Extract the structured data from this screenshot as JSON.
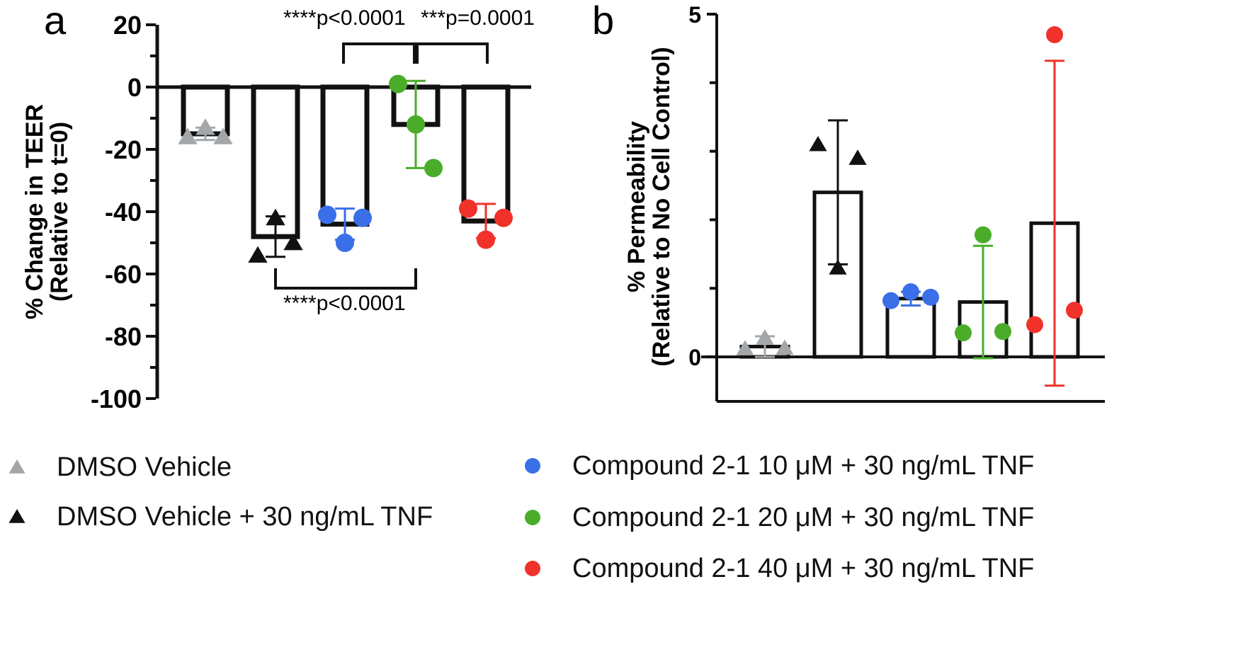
{
  "colors": {
    "gray": "#a3a7aa",
    "black": "#111111",
    "blue": "#3a6fe8",
    "green": "#4aad2a",
    "red": "#f0322b"
  },
  "legend": {
    "items": [
      {
        "label": "DMSO Vehicle",
        "marker": "triangle",
        "color": "#a3a7aa"
      },
      {
        "label": "DMSO Vehicle + 30 ng/mL TNF",
        "marker": "triangle",
        "color": "#111111"
      },
      {
        "label": "Compound 2-1 10 μM + 30 ng/mL TNF",
        "marker": "circle",
        "color": "#3a6fe8"
      },
      {
        "label": "Compound 2-1 20 μM + 30 ng/mL TNF",
        "marker": "circle",
        "color": "#4aad2a"
      },
      {
        "label": "Compound 2-1 40 μM + 30 ng/mL TNF",
        "marker": "circle",
        "color": "#f0322b"
      }
    ]
  },
  "chart_data": [
    {
      "panel": "a",
      "type": "bar",
      "ylabel": "% Change in TEER",
      "ylabel2": "(Relative to t=0)",
      "ylim": [
        -100,
        20
      ],
      "yticks": [
        20,
        0,
        -20,
        -40,
        -60,
        -80,
        -100
      ],
      "grid": false,
      "groups": [
        {
          "name": "DMSO Vehicle",
          "mean": -15,
          "sd": 2,
          "points": [
            -16,
            -13,
            -16
          ],
          "marker": "triangle",
          "color": "#a3a7aa"
        },
        {
          "name": "DMSO Vehicle + 30 ng/mL TNF",
          "mean": -48,
          "sd": 6.5,
          "points": [
            -54,
            -42,
            -50
          ],
          "marker": "triangle",
          "color": "#111111"
        },
        {
          "name": "Compound 2-1 10 μM + 30 ng/mL TNF",
          "mean": -44,
          "sd": 5,
          "points": [
            -41,
            -50,
            -42
          ],
          "marker": "circle",
          "color": "#3a6fe8"
        },
        {
          "name": "Compound 2-1 20 μM + 30 ng/mL TNF",
          "mean": -12,
          "sd": 14,
          "points": [
            1,
            -12,
            -26
          ],
          "marker": "circle",
          "color": "#4aad2a"
        },
        {
          "name": "Compound 2-1 40 μM + 30 ng/mL TNF",
          "mean": -43,
          "sd": 5.5,
          "points": [
            -39,
            -49,
            -42
          ],
          "marker": "circle",
          "color": "#f0322b"
        }
      ],
      "annotations": [
        {
          "text": "****p<0.0001",
          "from": 2,
          "to": 3,
          "side": "top"
        },
        {
          "text": "***p=0.0001",
          "from": 3,
          "to": 4,
          "side": "top"
        },
        {
          "text": "****p<0.0001",
          "from": 1,
          "to": 3,
          "side": "bottom"
        }
      ]
    },
    {
      "panel": "b",
      "type": "bar",
      "ylabel": "% Permeability",
      "ylabel2": "(Relative to No Cell  Control)",
      "ylim": [
        -0.65,
        5
      ],
      "yticks": [
        5,
        0
      ],
      "grid": false,
      "groups": [
        {
          "name": "DMSO Vehicle",
          "mean": 0.15,
          "sd": 0.15,
          "points": [
            0.12,
            0.28,
            0.13
          ],
          "marker": "triangle",
          "color": "#a3a7aa"
        },
        {
          "name": "DMSO Vehicle + 30 ng/mL TNF",
          "mean": 2.4,
          "sd": 1.05,
          "points": [
            3.1,
            1.3,
            2.9
          ],
          "marker": "triangle",
          "color": "#111111"
        },
        {
          "name": "Compound 2-1 10 μM + 30 ng/mL TNF",
          "mean": 0.85,
          "sd": 0.1,
          "points": [
            0.82,
            0.95,
            0.87
          ],
          "marker": "circle",
          "color": "#3a6fe8"
        },
        {
          "name": "Compound 2-1 20 μM + 30 ng/mL TNF",
          "mean": 0.8,
          "sd": 0.82,
          "points": [
            0.35,
            1.78,
            0.37
          ],
          "marker": "circle",
          "color": "#4aad2a"
        },
        {
          "name": "Compound 2-1 40 μM + 30 ng/mL TNF",
          "mean": 1.95,
          "sd": 2.37,
          "points": [
            0.47,
            4.7,
            0.68
          ],
          "marker": "circle",
          "color": "#f0322b"
        }
      ]
    }
  ],
  "panel_labels": [
    "a",
    "b"
  ]
}
